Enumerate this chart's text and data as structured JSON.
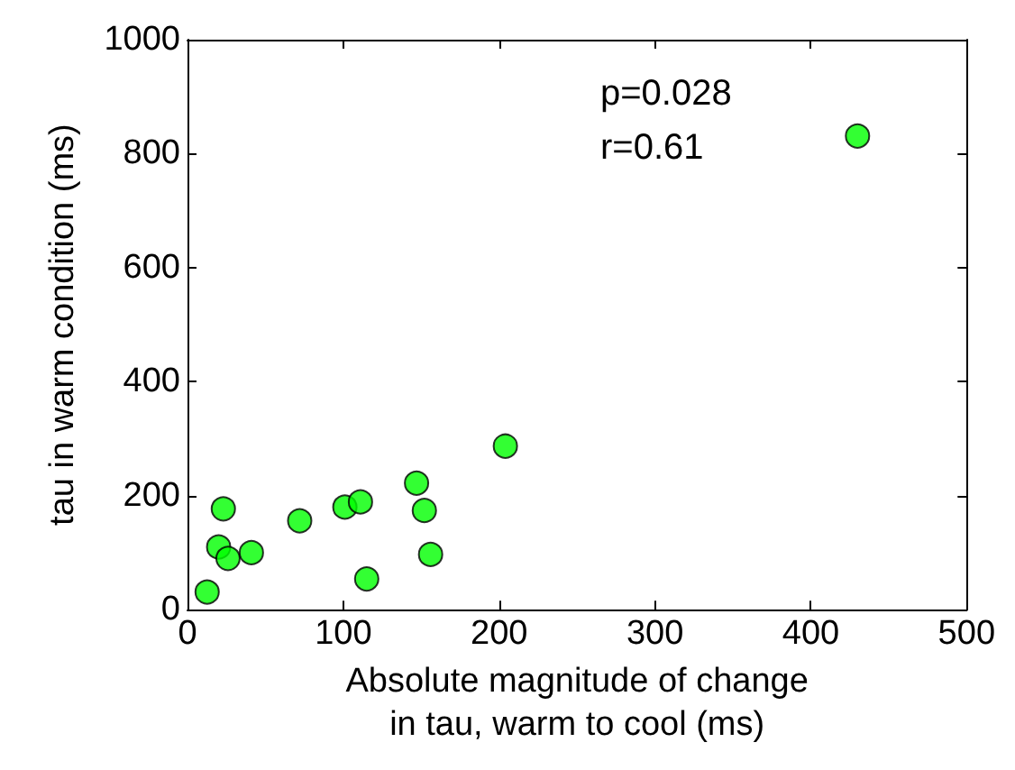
{
  "chart_data": {
    "type": "scatter",
    "xlabel": "Absolute magnitude of change\nin tau, warm to cool (ms)",
    "ylabel": "tau in warm condition (ms)",
    "annotations": [
      "p=0.028\nr=0.61"
    ],
    "x": [
      12.6,
      23,
      20,
      26,
      41,
      72,
      101,
      111,
      115,
      147,
      152,
      156,
      204,
      430
    ],
    "series": [
      {
        "color": "#00ff00",
        "values": [
          31,
          177,
          110,
          90,
          100,
          156,
          180,
          189,
          54,
          222,
          174,
          97,
          287,
          831
        ]
      }
    ],
    "xlim": [
      0,
      500
    ],
    "xticks": [
      0,
      100,
      200,
      300,
      400,
      500
    ],
    "ylim": [
      0,
      1000
    ],
    "yticks": [
      0,
      200,
      400,
      600,
      800,
      1000
    ],
    "marker": "circle"
  }
}
